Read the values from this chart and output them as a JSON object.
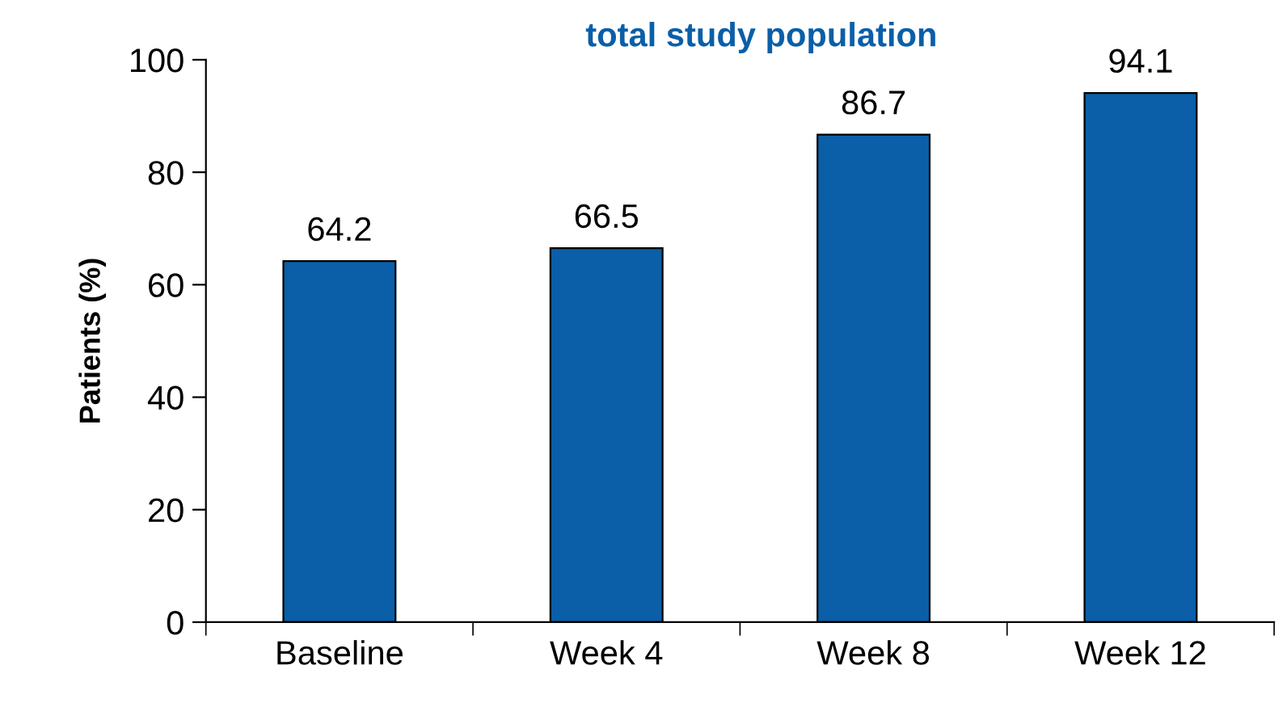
{
  "chart_data": {
    "type": "bar",
    "title": "total study population",
    "ylabel": "Patients (%)",
    "categories": [
      "Baseline",
      "Week 4",
      "Week 8",
      "Week 12"
    ],
    "values": [
      64.2,
      66.5,
      86.7,
      94.1
    ],
    "color": "#0a5fa8",
    "ylim": [
      0,
      100
    ],
    "yticks": [
      0,
      20,
      40,
      60,
      80,
      100
    ],
    "data_labels": true,
    "grid": false,
    "legend": false
  }
}
